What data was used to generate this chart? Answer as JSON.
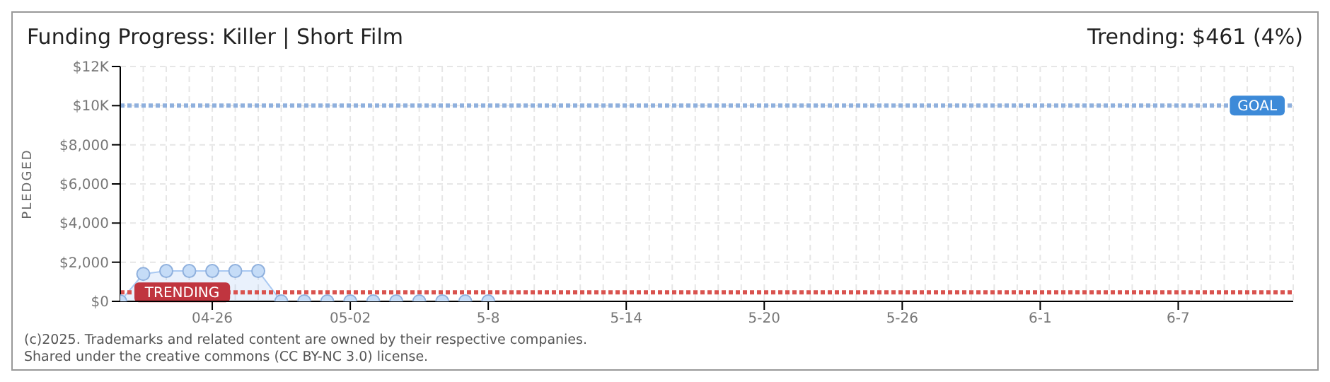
{
  "chart_data": {
    "type": "area",
    "title": "Funding Progress: Killer | Short Film",
    "subtitle": "Trending: $461 (4%)",
    "ylabel": "PLEDGED",
    "x": [
      "--04-22",
      "--04-23",
      "--04-24",
      "--04-25",
      "--04-26",
      "--04-27",
      "--04-28",
      "--04-29",
      "--04-30",
      "--05-01",
      "--05-02",
      "--05-03",
      "--05-04",
      "--05-05",
      "--05-06",
      "--05-07",
      "--05-08"
    ],
    "series": [
      {
        "color": "#a9c9f2",
        "values": [
          0,
          1400,
          1550,
          1550,
          1550,
          1550,
          1550,
          0,
          0,
          0,
          0,
          0,
          0,
          0,
          0,
          0,
          0
        ]
      }
    ],
    "marker": "circle",
    "grid": true,
    "xlim": [
      "--04-22",
      "--06-12"
    ],
    "xticks": [
      {
        "value": "--04-26",
        "label": "04-26"
      },
      {
        "value": "--05-02",
        "label": "05-02"
      },
      {
        "value": "--05-08",
        "label": "5-8"
      },
      {
        "value": "--05-14",
        "label": "5-14"
      },
      {
        "value": "--05-20",
        "label": "5-20"
      },
      {
        "value": "--05-26",
        "label": "5-26"
      },
      {
        "value": "--06-01",
        "label": "6-1"
      },
      {
        "value": "--06-07",
        "label": "6-7"
      }
    ],
    "ylim": [
      0,
      12000
    ],
    "yticks": [
      {
        "value": 0,
        "label": "$0"
      },
      {
        "value": 2000,
        "label": "$2,000"
      },
      {
        "value": 4000,
        "label": "$4,000"
      },
      {
        "value": 6000,
        "label": "$6,000"
      },
      {
        "value": 8000,
        "label": "$8,000"
      },
      {
        "value": 10000,
        "label": "$10K"
      },
      {
        "value": 12000,
        "label": "$12K"
      }
    ],
    "ref_lines": [
      {
        "axis": "y",
        "value": 10000,
        "label": "GOAL",
        "color": "#8fb0dd",
        "line_style": "dotted"
      },
      {
        "axis": "y",
        "value": 461,
        "label": "TRENDING",
        "color": "#d9534f",
        "line_style": "dotted"
      }
    ],
    "annotations": [
      "(c)2025. Trademarks and related content are owned by their respective companies.",
      "Shared under the creative commons (CC BY-NC 3.0) license."
    ]
  }
}
